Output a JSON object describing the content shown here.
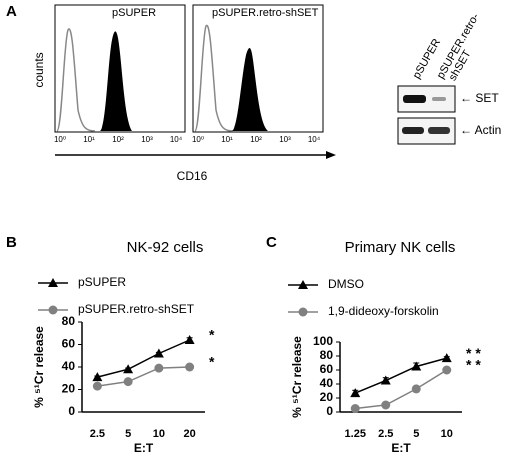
{
  "panel_a": {
    "label": "A",
    "hist_titles": [
      "pSUPER",
      "pSUPER.retro-shSET"
    ],
    "y_label": "counts",
    "x_label": "CD16",
    "log_ticks": [
      "10⁰",
      "10¹",
      "10²",
      "10³",
      "10⁴"
    ],
    "blot_lanes": [
      "pSUPER",
      "pSUPER.retro-",
      "shSET"
    ],
    "blot_bands": [
      "SET",
      "Actin"
    ]
  },
  "panel_labels": [
    "B",
    "C"
  ],
  "chart_data": [
    {
      "type": "line",
      "title": "NK-92 cells",
      "x_label": "E:T",
      "y_label": "% ⁵¹Cr release",
      "categories": [
        "2.5",
        "5",
        "10",
        "20"
      ],
      "ylim": [
        0,
        80
      ],
      "yticks": [
        0,
        20,
        40,
        60,
        80
      ],
      "series": [
        {
          "name": "pSUPER",
          "color": "#000000",
          "marker": "triangle",
          "values": [
            31,
            38,
            52,
            64
          ],
          "errors": [
            1,
            1,
            1,
            2
          ]
        },
        {
          "name": "pSUPER.retro-shSET",
          "color": "#808080",
          "marker": "circle",
          "values": [
            23,
            27,
            39,
            40
          ],
          "errors": [
            1,
            1,
            1,
            1
          ]
        }
      ],
      "annotations": [
        "*",
        "*"
      ]
    },
    {
      "type": "line",
      "title": "Primary NK cells",
      "x_label": "E:T",
      "y_label": "% ⁵¹Cr release",
      "categories": [
        "1.25",
        "2.5",
        "5",
        "10"
      ],
      "ylim": [
        0,
        100
      ],
      "yticks": [
        0,
        20,
        40,
        60,
        80,
        100
      ],
      "series": [
        {
          "name": "DMSO",
          "color": "#000000",
          "marker": "triangle",
          "values": [
            27,
            45,
            65,
            77
          ],
          "errors": [
            4,
            4,
            5,
            2
          ]
        },
        {
          "name": "1,9-dideoxy-forskolin",
          "color": "#808080",
          "marker": "circle",
          "values": [
            5,
            10,
            33,
            60
          ],
          "errors": [
            1,
            1,
            2,
            2
          ]
        }
      ],
      "annotations": [
        "* *",
        "* *"
      ]
    }
  ]
}
